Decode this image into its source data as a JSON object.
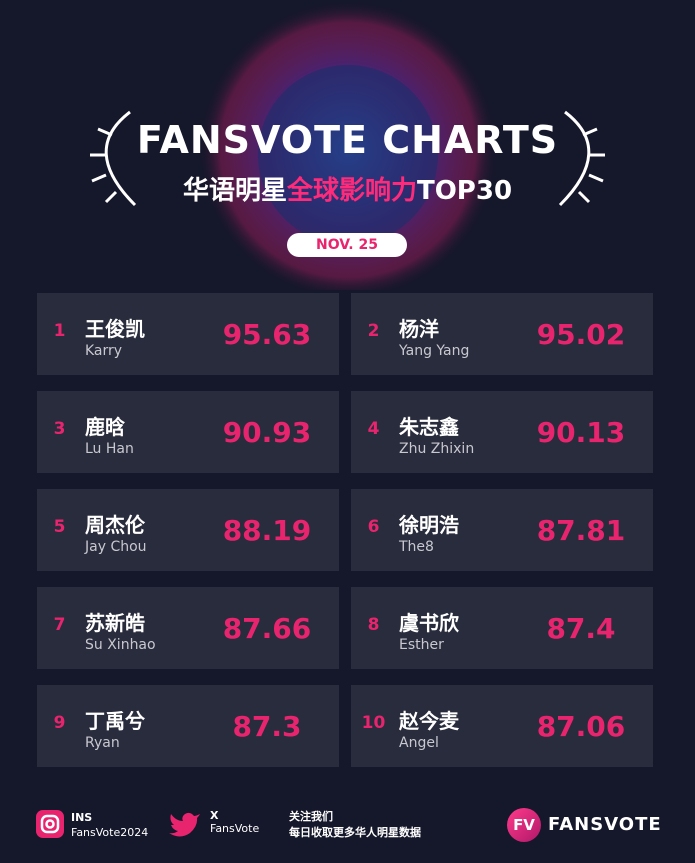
{
  "header": {
    "title": "FANSVOTE CHARTS",
    "subtitle": [
      "华语明星",
      "全球影响力",
      "TOP30"
    ],
    "date": "NOV. 25"
  },
  "entries": [
    {
      "rank": 1,
      "name_cn": "王俊凯",
      "name_en": "Karry",
      "score": 95.63
    },
    {
      "rank": 2,
      "name_cn": "杨洋",
      "name_en": "Yang Yang",
      "score": 95.02
    },
    {
      "rank": 3,
      "name_cn": "鹿晗",
      "name_en": "Lu Han",
      "score": 90.93
    },
    {
      "rank": 4,
      "name_cn": "朱志鑫",
      "name_en": "Zhu Zhixin",
      "score": 90.13
    },
    {
      "rank": 5,
      "name_cn": "周杰伦",
      "name_en": "Jay Chou",
      "score": 88.19
    },
    {
      "rank": 6,
      "name_cn": "徐明浩",
      "name_en": "The8",
      "score": 87.81
    },
    {
      "rank": 7,
      "name_cn": "苏新皓",
      "name_en": "Su Xinhao",
      "score": 87.66
    },
    {
      "rank": 8,
      "name_cn": "虞书欣",
      "name_en": "Esther",
      "score": 87.4
    },
    {
      "rank": 9,
      "name_cn": "丁禹兮",
      "name_en": "Ryan",
      "score": 87.3
    },
    {
      "rank": 10,
      "name_cn": "赵今麦",
      "name_en": "Angel",
      "score": 87.06
    }
  ],
  "footer": {
    "ins_label": "INS",
    "ins_handle": "FansVote2024",
    "x_label": "X",
    "x_handle": "FansVote",
    "follow_title": "关注我们",
    "follow_text": "每日收取更多华人明星数据",
    "logo_mark": "FV",
    "logo_text": "FANSVOTE"
  }
}
